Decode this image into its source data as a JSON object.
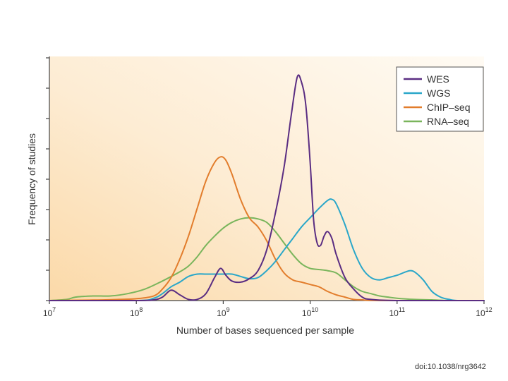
{
  "chart_data": {
    "type": "line",
    "title": "",
    "xlabel": "Number of bases sequenced per sample",
    "ylabel": "Frequency of studies",
    "x_scale": "log10",
    "xlim": [
      7,
      12
    ],
    "ylim": [
      0,
      100
    ],
    "x_tick_labels": [
      {
        "base": "10",
        "exp": "7"
      },
      {
        "base": "10",
        "exp": "8"
      },
      {
        "base": "10",
        "exp": "9"
      },
      {
        "base": "10",
        "exp": "10"
      },
      {
        "base": "10",
        "exp": "11"
      },
      {
        "base": "10",
        "exp": "12"
      }
    ],
    "legend_position": "top-right",
    "series": [
      {
        "name": "WES",
        "color": "#5a2d82",
        "points": [
          [
            7.0,
            0
          ],
          [
            8.0,
            0
          ],
          [
            8.2,
            0.3
          ],
          [
            8.3,
            1.5
          ],
          [
            8.4,
            4.5
          ],
          [
            8.5,
            2.5
          ],
          [
            8.6,
            0.5
          ],
          [
            8.7,
            0.5
          ],
          [
            8.8,
            3
          ],
          [
            8.9,
            10
          ],
          [
            8.97,
            14
          ],
          [
            9.03,
            11
          ],
          [
            9.1,
            8.5
          ],
          [
            9.2,
            8
          ],
          [
            9.3,
            9.5
          ],
          [
            9.4,
            13
          ],
          [
            9.5,
            22
          ],
          [
            9.6,
            38
          ],
          [
            9.7,
            58
          ],
          [
            9.78,
            80
          ],
          [
            9.85,
            97
          ],
          [
            9.9,
            95
          ],
          [
            9.95,
            85
          ],
          [
            10.0,
            60
          ],
          [
            10.04,
            35
          ],
          [
            10.08,
            25
          ],
          [
            10.12,
            24
          ],
          [
            10.16,
            28
          ],
          [
            10.2,
            30
          ],
          [
            10.25,
            27
          ],
          [
            10.3,
            20
          ],
          [
            10.4,
            10
          ],
          [
            10.5,
            5
          ],
          [
            10.6,
            1.5
          ],
          [
            10.7,
            0.5
          ],
          [
            11.0,
            0
          ],
          [
            12.0,
            0
          ]
        ]
      },
      {
        "name": "WGS",
        "color": "#2aa7c9",
        "points": [
          [
            7.0,
            0
          ],
          [
            8.0,
            0
          ],
          [
            8.2,
            1
          ],
          [
            8.3,
            3
          ],
          [
            8.4,
            6
          ],
          [
            8.5,
            8
          ],
          [
            8.6,
            10.5
          ],
          [
            8.7,
            11.5
          ],
          [
            8.8,
            11.5
          ],
          [
            8.9,
            11.5
          ],
          [
            9.0,
            11.5
          ],
          [
            9.1,
            11.5
          ],
          [
            9.2,
            10.5
          ],
          [
            9.3,
            9.5
          ],
          [
            9.4,
            10
          ],
          [
            9.5,
            13
          ],
          [
            9.6,
            17
          ],
          [
            9.7,
            22
          ],
          [
            9.8,
            27
          ],
          [
            9.9,
            32
          ],
          [
            10.0,
            36
          ],
          [
            10.1,
            40
          ],
          [
            10.2,
            43.5
          ],
          [
            10.25,
            44
          ],
          [
            10.3,
            42
          ],
          [
            10.4,
            33
          ],
          [
            10.5,
            22
          ],
          [
            10.6,
            14
          ],
          [
            10.7,
            10
          ],
          [
            10.8,
            9
          ],
          [
            10.9,
            10
          ],
          [
            11.0,
            11
          ],
          [
            11.1,
            12.5
          ],
          [
            11.15,
            13
          ],
          [
            11.2,
            12.5
          ],
          [
            11.3,
            9
          ],
          [
            11.4,
            4
          ],
          [
            11.5,
            1.5
          ],
          [
            11.6,
            0.5
          ],
          [
            11.7,
            0
          ],
          [
            12.0,
            0
          ]
        ]
      },
      {
        "name": "ChIP–seq",
        "color": "#e27d2c",
        "points": [
          [
            7.0,
            0
          ],
          [
            7.5,
            0.2
          ],
          [
            7.8,
            0.5
          ],
          [
            8.0,
            0.8
          ],
          [
            8.2,
            2
          ],
          [
            8.3,
            5
          ],
          [
            8.4,
            10
          ],
          [
            8.5,
            18
          ],
          [
            8.6,
            28
          ],
          [
            8.7,
            40
          ],
          [
            8.8,
            52
          ],
          [
            8.9,
            60
          ],
          [
            8.97,
            62.5
          ],
          [
            9.03,
            61
          ],
          [
            9.1,
            55
          ],
          [
            9.2,
            44
          ],
          [
            9.3,
            36
          ],
          [
            9.4,
            32
          ],
          [
            9.5,
            26
          ],
          [
            9.6,
            18
          ],
          [
            9.7,
            12
          ],
          [
            9.8,
            9
          ],
          [
            9.9,
            8
          ],
          [
            10.0,
            7
          ],
          [
            10.1,
            6
          ],
          [
            10.2,
            4
          ],
          [
            10.3,
            2.5
          ],
          [
            10.4,
            1.5
          ],
          [
            10.5,
            0.5
          ],
          [
            10.6,
            0.3
          ],
          [
            10.8,
            0
          ],
          [
            12.0,
            0
          ]
        ]
      },
      {
        "name": "RNA–seq",
        "color": "#7ab55c",
        "points": [
          [
            7.0,
            0
          ],
          [
            7.2,
            0.5
          ],
          [
            7.3,
            1.5
          ],
          [
            7.5,
            2
          ],
          [
            7.7,
            2
          ],
          [
            7.9,
            3
          ],
          [
            8.1,
            5
          ],
          [
            8.3,
            8.5
          ],
          [
            8.5,
            12.5
          ],
          [
            8.6,
            15
          ],
          [
            8.7,
            19
          ],
          [
            8.8,
            24
          ],
          [
            8.9,
            28
          ],
          [
            9.0,
            31.5
          ],
          [
            9.1,
            34
          ],
          [
            9.2,
            35.5
          ],
          [
            9.3,
            36
          ],
          [
            9.4,
            35.5
          ],
          [
            9.5,
            34
          ],
          [
            9.6,
            30
          ],
          [
            9.7,
            25
          ],
          [
            9.8,
            20
          ],
          [
            9.9,
            16
          ],
          [
            10.0,
            14
          ],
          [
            10.1,
            13.5
          ],
          [
            10.2,
            13
          ],
          [
            10.3,
            12
          ],
          [
            10.4,
            9
          ],
          [
            10.5,
            6
          ],
          [
            10.6,
            4
          ],
          [
            10.7,
            3
          ],
          [
            10.8,
            2
          ],
          [
            10.9,
            1.5
          ],
          [
            11.0,
            1
          ],
          [
            11.2,
            0.5
          ],
          [
            11.4,
            0.3
          ],
          [
            11.6,
            0
          ],
          [
            12.0,
            0
          ]
        ]
      }
    ]
  },
  "citation": "doi:10.1038/nrg3642"
}
